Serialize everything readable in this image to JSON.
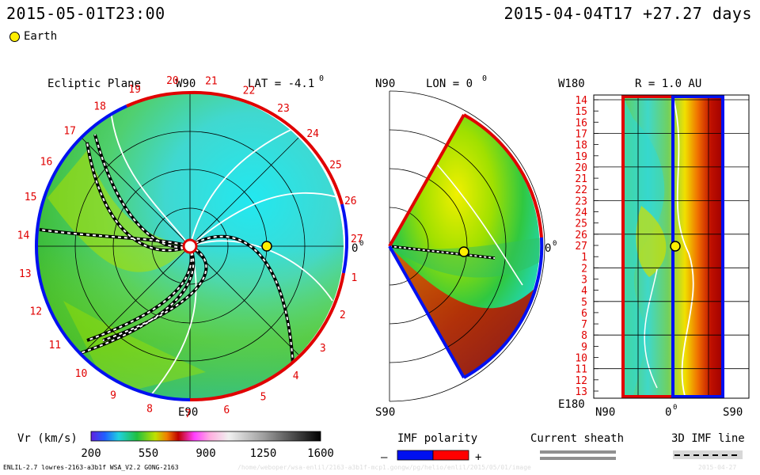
{
  "header": {
    "left_time": "2015-05-01T23:00",
    "right_time": "2015-04-04T17 +27.27 days"
  },
  "legend": {
    "earth_label": "Earth"
  },
  "colors": {
    "accent_red": "#e00000",
    "accent_blue": "#0010f0",
    "earth_fill": "#ffee00"
  },
  "chart_data": [
    {
      "type": "heatmap",
      "panel": "ecliptic",
      "title": "Ecliptic Plane",
      "lat_label": "LAT = -4.1",
      "lat_sup": "0",
      "top_label": "W90",
      "bottom_label": "E90",
      "right_label": "0",
      "right_sup": "0",
      "rim_numbers": [
        "20",
        "21",
        "22",
        "23",
        "24",
        "25",
        "26",
        "27",
        "1",
        "2",
        "3",
        "4",
        "5",
        "6",
        "7",
        "8",
        "9",
        "10",
        "11",
        "12",
        "13",
        "14",
        "15",
        "16",
        "17",
        "18",
        "19"
      ],
      "earth": {
        "angle_deg": 0,
        "r_au": 1.0
      }
    },
    {
      "type": "heatmap",
      "panel": "meridional",
      "left_top_label": "N90",
      "lon_label": "LON = 0",
      "lon_sup": "0",
      "bottom_label": "S90",
      "right_label": "0",
      "right_sup": "0",
      "lat_range": [
        -60,
        60
      ]
    },
    {
      "type": "heatmap",
      "panel": "r-slice",
      "title": "R = 1.0 AU",
      "top_left_label": "W180",
      "bottom_left_label": "E180",
      "y_ticks": [
        "14",
        "15",
        "16",
        "17",
        "18",
        "19",
        "20",
        "21",
        "22",
        "23",
        "24",
        "25",
        "26",
        "27",
        "1",
        "2",
        "3",
        "4",
        "5",
        "6",
        "7",
        "8",
        "9",
        "10",
        "11",
        "12",
        "13"
      ],
      "x_ticks": [
        "N90",
        "0",
        "S90"
      ],
      "x_zero_sup": "0"
    }
  ],
  "colorbar": {
    "label": "Vr (km/s)",
    "min": 200,
    "max": 1600,
    "ticks": [
      "200",
      "550",
      "900",
      "1250",
      "1600"
    ]
  },
  "imf_legend": {
    "title": "IMF polarity",
    "minus": "–",
    "plus": "+",
    "negative_color": "#0010f0",
    "positive_color": "#ff0000"
  },
  "sheath_legend": {
    "title": "Current sheath"
  },
  "imf3d_legend": {
    "title": "3D IMF line"
  },
  "footer": {
    "model": "ENLIL-2.7 lowres-2163-a3b1f WSA_V2.2 GONG-2163",
    "path": "/home/weboper/wsa-enlil/2163-a3b1f-mcp1.gongw/pg/helio/enlil/2015/05/01/image",
    "stamp": "2015-04-27"
  }
}
